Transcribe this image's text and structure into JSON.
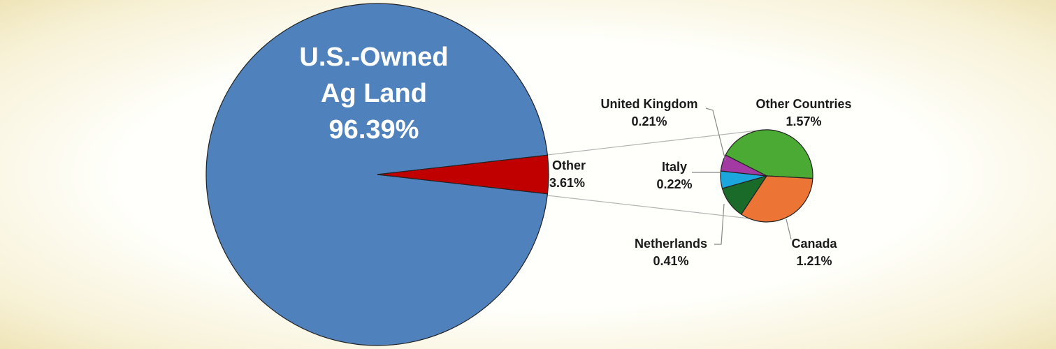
{
  "chart_data": [
    {
      "type": "pie",
      "categories": [
        "U.S.-Owned Ag Land",
        "Other"
      ],
      "values": [
        96.39,
        3.61
      ],
      "value_labels": [
        "96.39%",
        "3.61%"
      ],
      "colors": [
        "#4f81bd",
        "#c00000"
      ]
    },
    {
      "type": "pie",
      "categories": [
        "Other Countries",
        "Canada",
        "Netherlands",
        "Italy",
        "United Kingdom"
      ],
      "values": [
        1.57,
        1.21,
        0.41,
        0.22,
        0.21
      ],
      "value_labels": [
        "1.57%",
        "1.21%",
        "0.41%",
        "0.22%",
        "0.21%"
      ],
      "colors": [
        "#4aaa33",
        "#ec7434",
        "#1a6b2a",
        "#1ca6de",
        "#a33aa3"
      ]
    }
  ]
}
